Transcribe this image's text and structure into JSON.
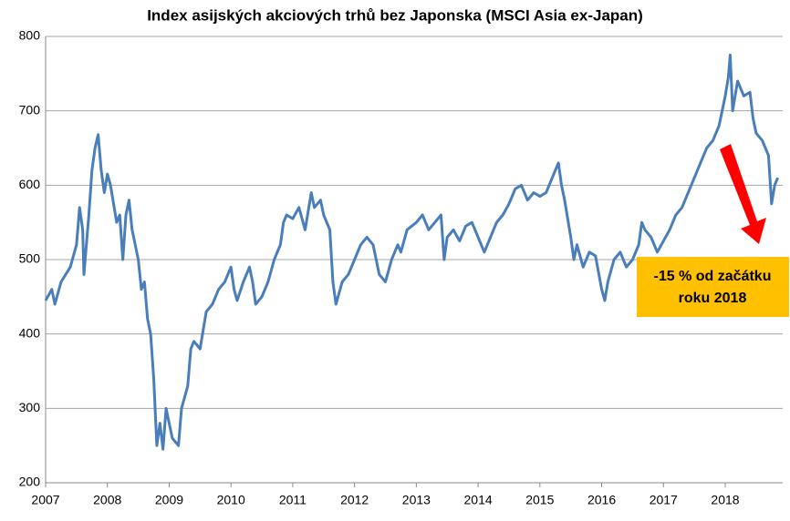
{
  "chart_data": {
    "type": "line",
    "title": "Index asijských akciových trhů bez Japonska (MSCI Asia ex-Japan)",
    "annotation": [
      "-15 % od začátku",
      "roku 2018"
    ],
    "x": [
      2007.0,
      2007.1,
      2007.15,
      2007.25,
      2007.4,
      2007.5,
      2007.55,
      2007.6,
      2007.62,
      2007.7,
      2007.75,
      2007.8,
      2007.85,
      2007.9,
      2007.95,
      2008.0,
      2008.05,
      2008.15,
      2008.2,
      2008.25,
      2008.3,
      2008.35,
      2008.4,
      2008.5,
      2008.55,
      2008.6,
      2008.65,
      2008.7,
      2008.75,
      2008.8,
      2008.85,
      2008.9,
      2008.95,
      2009.0,
      2009.05,
      2009.15,
      2009.2,
      2009.3,
      2009.35,
      2009.4,
      2009.5,
      2009.6,
      2009.7,
      2009.8,
      2009.9,
      2010.0,
      2010.05,
      2010.1,
      2010.2,
      2010.3,
      2010.35,
      2010.4,
      2010.5,
      2010.6,
      2010.7,
      2010.8,
      2010.85,
      2010.9,
      2011.0,
      2011.1,
      2011.2,
      2011.3,
      2011.35,
      2011.45,
      2011.5,
      2011.6,
      2011.65,
      2011.7,
      2011.8,
      2011.9,
      2012.0,
      2012.1,
      2012.2,
      2012.3,
      2012.4,
      2012.5,
      2012.6,
      2012.7,
      2012.75,
      2012.85,
      2013.0,
      2013.1,
      2013.2,
      2013.3,
      2013.4,
      2013.45,
      2013.5,
      2013.6,
      2013.7,
      2013.8,
      2013.9,
      2014.0,
      2014.1,
      2014.2,
      2014.3,
      2014.4,
      2014.5,
      2014.6,
      2014.7,
      2014.8,
      2014.9,
      2015.0,
      2015.1,
      2015.2,
      2015.3,
      2015.35,
      2015.4,
      2015.5,
      2015.55,
      2015.6,
      2015.7,
      2015.8,
      2015.9,
      2016.0,
      2016.05,
      2016.1,
      2016.2,
      2016.3,
      2016.4,
      2016.5,
      2016.6,
      2016.65,
      2016.7,
      2016.8,
      2016.9,
      2017.0,
      2017.1,
      2017.2,
      2017.3,
      2017.4,
      2017.5,
      2017.6,
      2017.7,
      2017.8,
      2017.9,
      2018.0,
      2018.05,
      2018.08,
      2018.12,
      2018.2,
      2018.3,
      2018.4,
      2018.45,
      2018.5,
      2018.6,
      2018.7,
      2018.75,
      2018.8,
      2018.85
    ],
    "series": [
      {
        "name": "MSCI Asia ex-Japan",
        "color": "#4a7ebb",
        "values": [
          445,
          460,
          440,
          470,
          490,
          520,
          570,
          540,
          480,
          560,
          620,
          650,
          668,
          620,
          590,
          615,
          600,
          550,
          560,
          500,
          560,
          580,
          540,
          500,
          460,
          470,
          420,
          400,
          340,
          250,
          280,
          245,
          300,
          280,
          260,
          250,
          300,
          330,
          380,
          390,
          380,
          430,
          440,
          460,
          470,
          490,
          460,
          445,
          470,
          490,
          470,
          440,
          450,
          470,
          500,
          520,
          550,
          560,
          555,
          570,
          540,
          590,
          570,
          580,
          560,
          540,
          470,
          440,
          470,
          480,
          500,
          520,
          530,
          520,
          480,
          470,
          500,
          520,
          510,
          540,
          550,
          560,
          540,
          550,
          560,
          500,
          530,
          540,
          525,
          545,
          550,
          530,
          510,
          530,
          550,
          560,
          575,
          595,
          600,
          580,
          590,
          585,
          590,
          610,
          630,
          600,
          580,
          530,
          500,
          520,
          490,
          510,
          505,
          460,
          445,
          470,
          500,
          510,
          490,
          500,
          520,
          550,
          540,
          530,
          510,
          525,
          540,
          560,
          570,
          590,
          610,
          630,
          650,
          660,
          680,
          720,
          745,
          775,
          700,
          740,
          720,
          725,
          690,
          670,
          660,
          640,
          575,
          600,
          610
        ]
      }
    ],
    "xlim": [
      2007,
      2018.93
    ],
    "xticks": [
      2007,
      2008,
      2009,
      2010,
      2011,
      2012,
      2013,
      2014,
      2015,
      2016,
      2017,
      2018
    ],
    "ylim": [
      200,
      800
    ],
    "yticks": [
      200,
      300,
      400,
      500,
      600,
      700,
      800
    ],
    "grid": true
  }
}
